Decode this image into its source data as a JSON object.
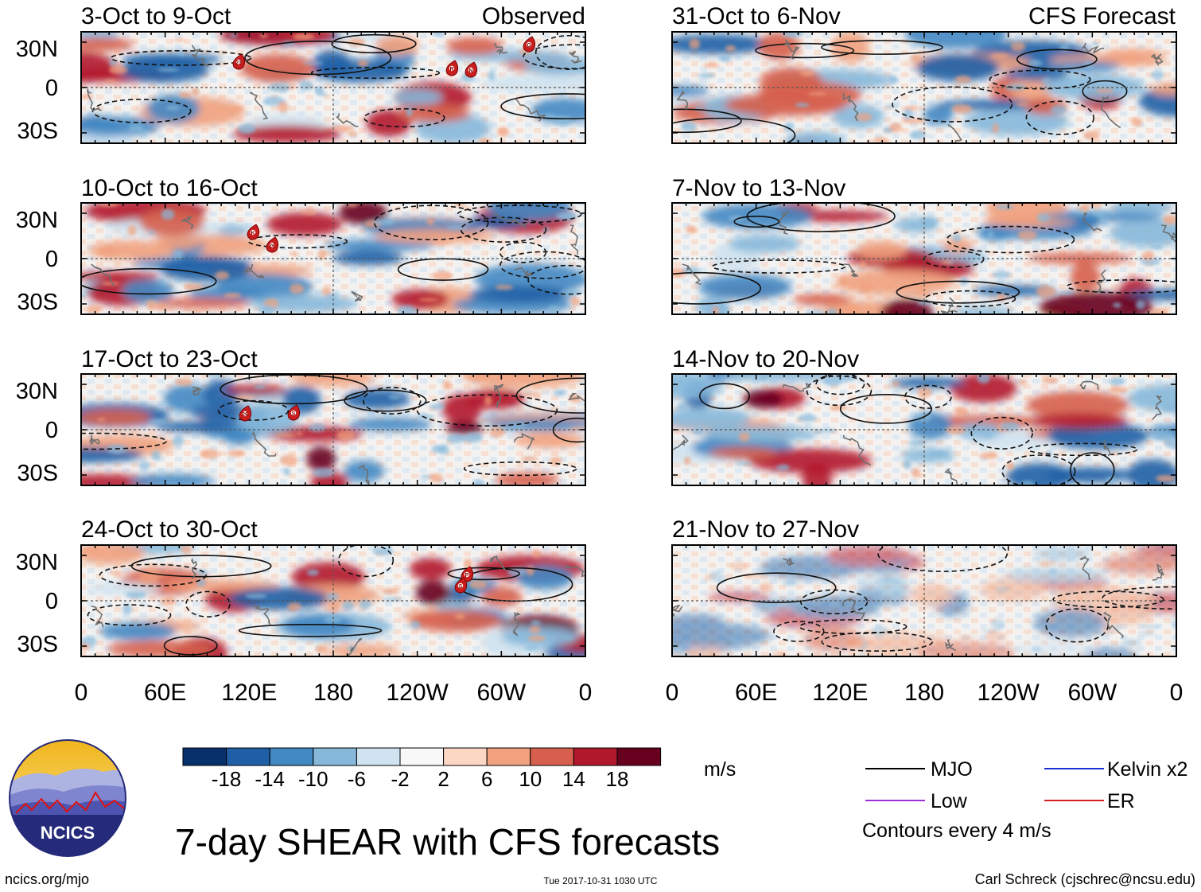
{
  "title": "7-day SHEAR with CFS forecasts",
  "panel_headers": {
    "left": "Observed",
    "right": "CFS Forecast"
  },
  "left_panels": [
    {
      "label": "3-Oct to 9-Oct",
      "storms": [
        "23",
        "R",
        "N",
        "O"
      ]
    },
    {
      "label": "10-Oct to 16-Oct",
      "storms": [
        "K",
        "26"
      ]
    },
    {
      "label": "17-Oct to 23-Oct",
      "storms": [
        "26",
        "S"
      ]
    },
    {
      "label": "24-Oct to 30-Oct",
      "storms": [
        "P",
        "S"
      ]
    }
  ],
  "right_panels": [
    {
      "label": "31-Oct to 6-Nov"
    },
    {
      "label": "7-Nov to 13-Nov"
    },
    {
      "label": "14-Nov to 20-Nov"
    },
    {
      "label": "21-Nov to 27-Nov"
    }
  ],
  "lat_ticks": [
    "30N",
    "0",
    "30S"
  ],
  "lon_ticks": [
    "0",
    "60E",
    "120E",
    "180",
    "120W",
    "60W",
    "0"
  ],
  "colorbar": {
    "ticks": [
      "-18",
      "-14",
      "-10",
      "-6",
      "-2",
      "2",
      "6",
      "10",
      "14",
      "18"
    ],
    "units": "m/s",
    "colors": [
      "#08306b",
      "#1f5fa6",
      "#4288c3",
      "#86b8da",
      "#cfe3f1",
      "#f8f8f8",
      "#fbd7c4",
      "#f1a17e",
      "#d6604d",
      "#b2182b",
      "#67001f"
    ]
  },
  "legend": {
    "items": [
      {
        "label": "MJO",
        "color": "#000000"
      },
      {
        "label": "Kelvin x2",
        "color": "#1f2fd6"
      },
      {
        "label": "Low",
        "color": "#9b30d9"
      },
      {
        "label": "ER",
        "color": "#d62020"
      }
    ],
    "note": "Contours every 4 m/s"
  },
  "logo": {
    "text": "NCICS"
  },
  "footer": {
    "url": "ncics.org/mjo",
    "timestamp": "Tue 2017-10-31 1030 UTC",
    "credit": "Carl Schreck (cjschrec@ncsu.edu)"
  }
}
